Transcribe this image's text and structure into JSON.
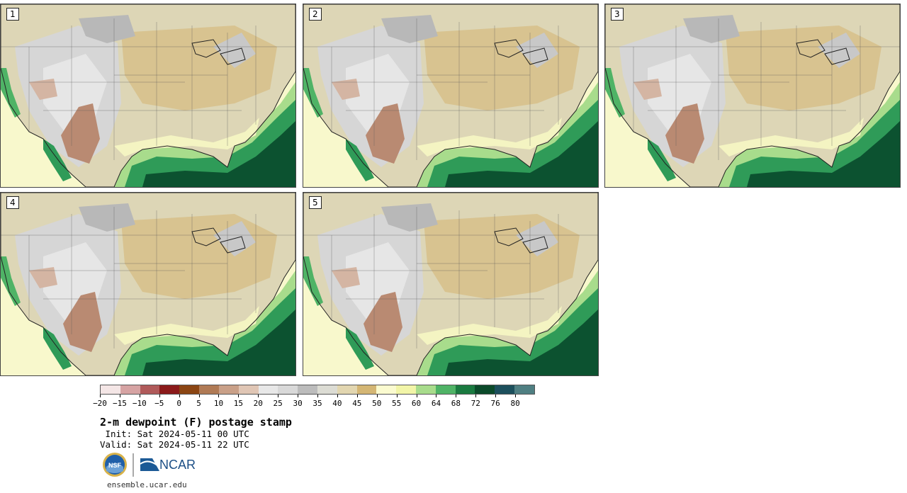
{
  "panels": [
    {
      "label": "1"
    },
    {
      "label": "2"
    },
    {
      "label": "3"
    },
    {
      "label": "4"
    },
    {
      "label": "5"
    }
  ],
  "colorbar": {
    "colors": [
      "#f4e6e6",
      "#d6a3a3",
      "#b05a5a",
      "#8b1a1a",
      "#8b4513",
      "#b07a55",
      "#c9a088",
      "#e0c6b5",
      "#e8e8e8",
      "#d9d9d9",
      "#bcbcbc",
      "#dcdcd4",
      "#e2d6b0",
      "#d4b674",
      "#fbfbd0",
      "#f2f5a8",
      "#a8dc8c",
      "#4fb366",
      "#1a7a40",
      "#0b4a2a",
      "#1c4f5c",
      "#4f7f82"
    ],
    "tick_labels": [
      "−20",
      "−15",
      "−10",
      "−5",
      "0",
      "5",
      "10",
      "15",
      "20",
      "25",
      "30",
      "35",
      "40",
      "45",
      "50",
      "55",
      "60",
      "64",
      "68",
      "72",
      "76",
      "80"
    ]
  },
  "title": "2-m dewpoint (F) postage stamp",
  "init": " Init: Sat 2024-05-11 00 UTC",
  "valid": "Valid: Sat 2024-05-11 22 UTC",
  "logos": {
    "nsf": "NSF",
    "ncar": "NCAR"
  },
  "site": "ensemble.ucar.edu"
}
